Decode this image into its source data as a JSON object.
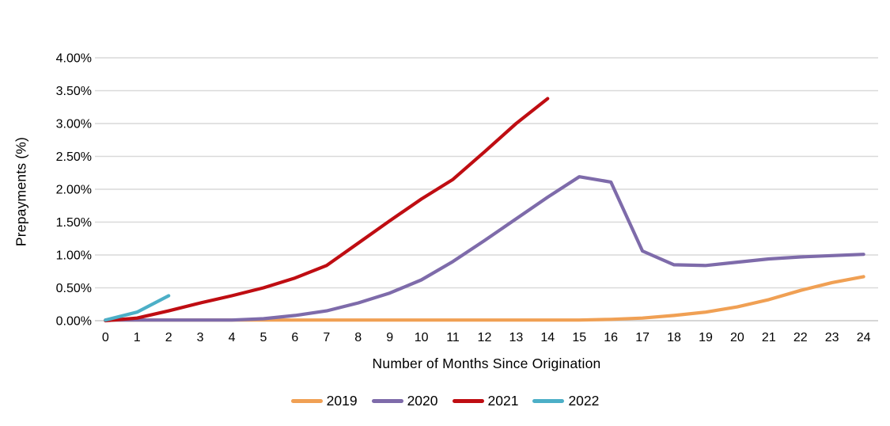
{
  "chart_data": {
    "type": "line",
    "title": "",
    "xlabel": "Number of Months Since Origination",
    "ylabel": "Prepayments (%)",
    "x_ticks": [
      0,
      1,
      2,
      3,
      4,
      5,
      6,
      7,
      8,
      9,
      10,
      11,
      12,
      13,
      14,
      15,
      16,
      17,
      18,
      19,
      20,
      21,
      22,
      23,
      24
    ],
    "y_ticks": [
      {
        "value": 0.0,
        "label": "0.00%"
      },
      {
        "value": 0.5,
        "label": "0.50%"
      },
      {
        "value": 1.0,
        "label": "1.00%"
      },
      {
        "value": 1.5,
        "label": "1.50%"
      },
      {
        "value": 2.0,
        "label": "2.00%"
      },
      {
        "value": 2.5,
        "label": "2.50%"
      },
      {
        "value": 3.0,
        "label": "3.00%"
      },
      {
        "value": 3.5,
        "label": "3.50%"
      },
      {
        "value": 4.0,
        "label": "4.00%"
      }
    ],
    "ylim": [
      0,
      4.0
    ],
    "xlim": [
      0,
      24
    ],
    "grid": "horizontal",
    "legend_position": "bottom",
    "gridline_color": "#D9D9D9",
    "axis_line_color": "#C8C8C8",
    "series": [
      {
        "name": "2019",
        "color": "#F0A054",
        "x": [
          0,
          1,
          2,
          3,
          4,
          5,
          6,
          7,
          8,
          9,
          10,
          11,
          12,
          13,
          14,
          15,
          16,
          17,
          18,
          19,
          20,
          21,
          22,
          23,
          24
        ],
        "values": [
          0.01,
          0.01,
          0.01,
          0.01,
          0.01,
          0.01,
          0.01,
          0.01,
          0.01,
          0.01,
          0.01,
          0.01,
          0.01,
          0.01,
          0.01,
          0.01,
          0.02,
          0.04,
          0.08,
          0.13,
          0.21,
          0.32,
          0.46,
          0.58,
          0.67
        ]
      },
      {
        "name": "2020",
        "color": "#7E6BAA",
        "x": [
          0,
          1,
          2,
          3,
          4,
          5,
          6,
          7,
          8,
          9,
          10,
          11,
          12,
          13,
          14,
          15,
          16,
          17,
          18,
          19,
          20,
          21,
          22,
          23,
          24
        ],
        "values": [
          0.01,
          0.01,
          0.01,
          0.01,
          0.01,
          0.03,
          0.08,
          0.15,
          0.27,
          0.42,
          0.62,
          0.9,
          1.22,
          1.55,
          1.88,
          2.19,
          2.11,
          1.06,
          0.85,
          0.84,
          0.89,
          0.94,
          0.97,
          0.99,
          1.01
        ]
      },
      {
        "name": "2021",
        "color": "#BF0D12",
        "x": [
          0,
          1,
          2,
          3,
          4,
          5,
          6,
          7,
          8,
          9,
          10,
          11,
          12,
          13,
          14
        ],
        "values": [
          0.0,
          0.04,
          0.15,
          0.27,
          0.38,
          0.5,
          0.65,
          0.84,
          1.18,
          1.52,
          1.85,
          2.15,
          2.57,
          3.0,
          3.38
        ]
      },
      {
        "name": "2022",
        "color": "#4CAFC7",
        "x": [
          0,
          1,
          2
        ],
        "values": [
          0.01,
          0.13,
          0.38
        ]
      }
    ]
  }
}
